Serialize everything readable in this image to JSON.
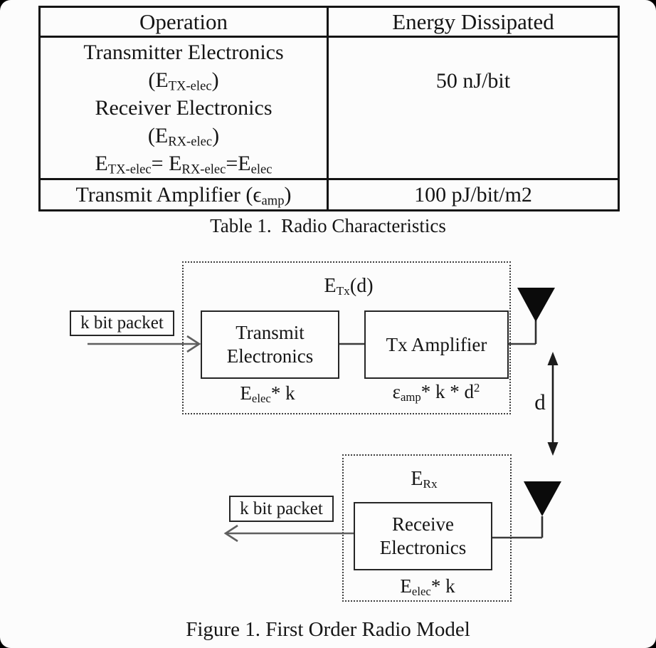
{
  "table": {
    "caption": "Table 1.  Radio Characteristics",
    "headers": {
      "operation": "Operation",
      "energy": "Energy Dissipated"
    },
    "electronics_row": {
      "operation_lines": [
        "Transmitter Electronics",
        "(E_{TX-elec})",
        "Receiver Electronics",
        "(E_{RX-elec})",
        "E_{TX-elec}= E_{RX-elec}=E_{elec}"
      ],
      "energy": "50 nJ/bit"
    },
    "amplifier_row": {
      "operation": "Transmit Amplifier (ϵ_{amp})",
      "energy": "100 pJ/bit/m2"
    }
  },
  "figure": {
    "caption": "Figure 1. First Order Radio Model",
    "tx_group_label": "E_{Tx}(d)",
    "input_packet_label": "k bit packet",
    "transmit_electronics": {
      "line1": "Transmit",
      "line2": "Electronics",
      "cost": "E_{elec}* k"
    },
    "tx_amplifier": {
      "label": "Tx Amplifier",
      "cost": "ε_{amp}* k * d^{2}"
    },
    "distance_label": "d",
    "rx_group_label": "E_{Rx}",
    "output_packet_label": "k bit packet",
    "receive_electronics": {
      "line1": "Receive",
      "line2": "Electronics",
      "cost": "E_{elec}* k"
    },
    "icons": {
      "tx_antenna": "filled-downward-triangle-antenna",
      "rx_antenna": "filled-downward-triangle-antenna",
      "distance_arrow": "vertical-double-headed-arrow",
      "input_arrow": "right-chevron-arrow",
      "output_arrow": "left-chevron-arrow"
    }
  },
  "colors": {
    "ink": "#151515",
    "signal_line": "#5f5f5f",
    "connector_line": "#3c3c3c",
    "antenna_fill": "#0b0b0b",
    "paper": "#fcfcfc",
    "corner_background": "#000000"
  }
}
